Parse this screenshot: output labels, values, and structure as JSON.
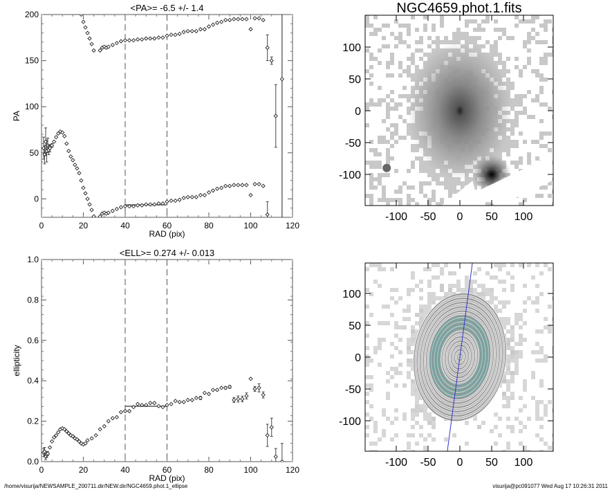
{
  "chart_data": [
    {
      "type": "scatter",
      "title": "<PA>=  -6.5 +/-   1.4",
      "xlabel": "RAD (pix)",
      "ylabel": "PA",
      "xlim": [
        0,
        120
      ],
      "ylim": [
        -20,
        200
      ],
      "xticks": [
        "0",
        "20",
        "40",
        "60",
        "80",
        "100",
        "120"
      ],
      "yticks": [
        "0",
        "50",
        "100",
        "150",
        "200"
      ],
      "dashed_vlines": [
        40,
        60
      ],
      "solid_vline": 115,
      "mean": {
        "value": -6.5,
        "range": [
          40,
          60
        ]
      },
      "points": [
        [
          1,
          55,
          12
        ],
        [
          1.5,
          48,
          10
        ],
        [
          2,
          62,
          15
        ],
        [
          2.5,
          52,
          12
        ],
        [
          3,
          58,
          8
        ],
        [
          3.5,
          53,
          5
        ],
        [
          4,
          55,
          4
        ],
        [
          5,
          58,
          2
        ],
        [
          6,
          62,
          1
        ],
        [
          7,
          67,
          1
        ],
        [
          8,
          71,
          1
        ],
        [
          9,
          73,
          1
        ],
        [
          10,
          72,
          1
        ],
        [
          11,
          68,
          1
        ],
        [
          12,
          60,
          1
        ],
        [
          13,
          52,
          1
        ],
        [
          14,
          46,
          1
        ],
        [
          15,
          42,
          1
        ],
        [
          16,
          37,
          1
        ],
        [
          17,
          33,
          1
        ],
        [
          18,
          28,
          1
        ],
        [
          19,
          20,
          1
        ],
        [
          20,
          12,
          1
        ],
        [
          21,
          6,
          1
        ],
        [
          22,
          0,
          1
        ],
        [
          23,
          -6,
          1
        ],
        [
          24,
          -12,
          1
        ],
        [
          25,
          -19,
          1
        ],
        [
          28,
          -19,
          1
        ],
        [
          29,
          -16,
          1
        ],
        [
          30,
          -15,
          1
        ],
        [
          31,
          -16,
          1
        ],
        [
          32,
          -15,
          1
        ],
        [
          34,
          -13,
          1
        ],
        [
          36,
          -11,
          1
        ],
        [
          38,
          -9,
          1
        ],
        [
          40,
          -8,
          1
        ],
        [
          42,
          -8,
          1
        ],
        [
          44,
          -8,
          1
        ],
        [
          46,
          -7,
          1
        ],
        [
          48,
          -7,
          1
        ],
        [
          50,
          -6,
          1
        ],
        [
          52,
          -6,
          1
        ],
        [
          54,
          -6,
          1
        ],
        [
          56,
          -5,
          1
        ],
        [
          58,
          -5,
          1
        ],
        [
          60,
          -3,
          1
        ],
        [
          62,
          -2,
          1
        ],
        [
          64,
          -2,
          1
        ],
        [
          66,
          -1,
          1
        ],
        [
          68,
          1,
          1
        ],
        [
          70,
          2,
          1
        ],
        [
          72,
          2,
          1
        ],
        [
          74,
          2,
          1
        ],
        [
          76,
          4,
          1
        ],
        [
          78,
          4,
          1
        ],
        [
          80,
          7,
          1
        ],
        [
          82,
          9,
          1
        ],
        [
          84,
          11,
          1
        ],
        [
          86,
          12,
          1
        ],
        [
          88,
          14,
          1
        ],
        [
          90,
          14,
          1
        ],
        [
          92,
          15,
          1
        ],
        [
          94,
          15,
          1
        ],
        [
          96,
          15,
          1
        ],
        [
          98,
          15,
          1
        ],
        [
          100,
          4,
          1
        ],
        [
          102,
          16,
          1
        ],
        [
          104,
          16,
          1
        ],
        [
          106,
          14,
          1
        ],
        [
          108,
          -17,
          14
        ],
        [
          108,
          164,
          14
        ],
        [
          110,
          150,
          4
        ],
        [
          112,
          90,
          34
        ],
        [
          115,
          130,
          200
        ]
      ],
      "fold_offset": 180
    },
    {
      "type": "scatter",
      "title": "<ELL>= 0.274 +/-  0.013",
      "xlabel": "RAD (pix)",
      "ylabel": "ellipticity",
      "xlim": [
        0,
        120
      ],
      "ylim": [
        0,
        1
      ],
      "xticks": [
        "0",
        "20",
        "40",
        "60",
        "80",
        "100",
        "120"
      ],
      "yticks": [
        "0.0",
        "0.2",
        "0.4",
        "0.6",
        "0.8",
        "1.0"
      ],
      "dashed_vlines": [
        40,
        60
      ],
      "mean": {
        "value": 0.274,
        "range": [
          40,
          60
        ]
      },
      "points": [
        [
          1,
          0.045,
          0.02
        ],
        [
          1.5,
          0.05,
          0.02
        ],
        [
          2,
          0.025,
          0.015
        ],
        [
          2.5,
          0.035,
          0.015
        ],
        [
          3,
          0.04,
          0.01
        ],
        [
          4,
          0.07,
          0.005
        ],
        [
          5,
          0.1,
          0.003
        ],
        [
          6,
          0.12,
          0.003
        ],
        [
          7,
          0.13,
          0.003
        ],
        [
          8,
          0.145,
          0.002
        ],
        [
          9,
          0.16,
          0.002
        ],
        [
          10,
          0.165,
          0.002
        ],
        [
          11,
          0.16,
          0.002
        ],
        [
          12,
          0.15,
          0.002
        ],
        [
          13,
          0.14,
          0.002
        ],
        [
          14,
          0.13,
          0.002
        ],
        [
          15,
          0.125,
          0.002
        ],
        [
          16,
          0.115,
          0.002
        ],
        [
          17,
          0.11,
          0.002
        ],
        [
          18,
          0.1,
          0.002
        ],
        [
          19,
          0.09,
          0.002
        ],
        [
          20,
          0.085,
          0.002
        ],
        [
          21,
          0.09,
          0.002
        ],
        [
          22,
          0.105,
          0.002
        ],
        [
          24,
          0.115,
          0.002
        ],
        [
          26,
          0.13,
          0.002
        ],
        [
          28,
          0.16,
          0.002
        ],
        [
          30,
          0.175,
          0.002
        ],
        [
          32,
          0.2,
          0.002
        ],
        [
          34,
          0.215,
          0.002
        ],
        [
          36,
          0.22,
          0.002
        ],
        [
          38,
          0.245,
          0.002
        ],
        [
          40,
          0.25,
          0.002
        ],
        [
          42,
          0.25,
          0.002
        ],
        [
          44,
          0.27,
          0.002
        ],
        [
          46,
          0.285,
          0.002
        ],
        [
          48,
          0.28,
          0.002
        ],
        [
          50,
          0.28,
          0.002
        ],
        [
          52,
          0.29,
          0.002
        ],
        [
          54,
          0.29,
          0.002
        ],
        [
          56,
          0.275,
          0.002
        ],
        [
          58,
          0.27,
          0.002
        ],
        [
          60,
          0.28,
          0.002
        ],
        [
          62,
          0.285,
          0.002
        ],
        [
          64,
          0.3,
          0.003
        ],
        [
          66,
          0.295,
          0.003
        ],
        [
          68,
          0.295,
          0.003
        ],
        [
          70,
          0.305,
          0.003
        ],
        [
          72,
          0.305,
          0.003
        ],
        [
          74,
          0.315,
          0.004
        ],
        [
          76,
          0.315,
          0.008
        ],
        [
          78,
          0.34,
          0.005
        ],
        [
          80,
          0.335,
          0.005
        ],
        [
          82,
          0.355,
          0.005
        ],
        [
          84,
          0.355,
          0.005
        ],
        [
          86,
          0.365,
          0.005
        ],
        [
          88,
          0.365,
          0.006
        ],
        [
          90,
          0.37,
          0.007
        ],
        [
          92,
          0.305,
          0.012
        ],
        [
          94,
          0.31,
          0.015
        ],
        [
          96,
          0.31,
          0.014
        ],
        [
          98,
          0.325,
          0.015
        ],
        [
          100,
          0.41,
          0.004
        ],
        [
          102,
          0.36,
          0.012
        ],
        [
          104,
          0.365,
          0.02
        ],
        [
          106,
          0.33,
          0.015
        ],
        [
          108,
          0.13,
          0.055
        ],
        [
          110,
          0.17,
          0.045
        ],
        [
          112,
          0.025,
          0.04
        ],
        [
          115,
          0.0,
          0.09
        ]
      ]
    }
  ],
  "images": [
    {
      "title": "NGC4659.phot.1.fits",
      "xticks": [
        "-100",
        "-50",
        "0",
        "50",
        "100"
      ],
      "yticks": [
        "-100",
        "-50",
        "0",
        "50",
        "100"
      ]
    },
    {
      "title": "",
      "xticks": [
        "-100",
        "-50",
        "0",
        "50",
        "100"
      ],
      "yticks": [
        "-100",
        "-50",
        "0",
        "50",
        "100"
      ],
      "contour_color": "#3fa8a0",
      "pa_line_color": "#3333cc"
    }
  ],
  "footer": {
    "path": "/home/visurija/NEWSAMPLE_200711.dir/NEW.dir/NGC4659.phot.1_ellipse",
    "stamp": "visurija@pc091077  Wed Aug 17 10:26:31 2011"
  }
}
